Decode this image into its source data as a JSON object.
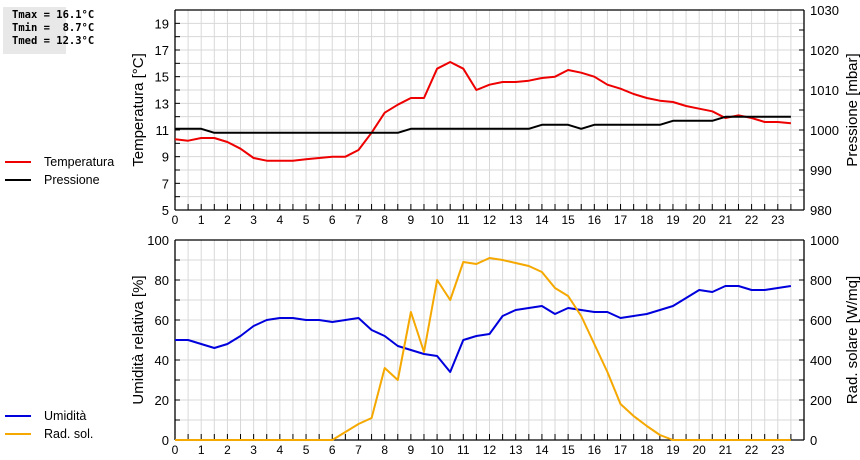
{
  "stats": {
    "tmax": "Tmax = 16.1°C",
    "tmin": "Tmin =  8.7°C",
    "tmed": "Tmed = 12.3°C"
  },
  "legend_top": [
    {
      "label": "Temperatura",
      "color": "#ee0000"
    },
    {
      "label": "Pressione",
      "color": "#000000"
    }
  ],
  "legend_bottom": [
    {
      "label": "Umidità",
      "color": "#0000dd"
    },
    {
      "label": "Rad. sol.",
      "color": "#f5a800"
    }
  ],
  "chart_data": [
    {
      "type": "line",
      "title": "",
      "xlabel": "",
      "x_ticks": [
        "0",
        "1",
        "2",
        "3",
        "4",
        "5",
        "6",
        "7",
        "8",
        "9",
        "10",
        "11",
        "12",
        "13",
        "14",
        "15",
        "16",
        "17",
        "18",
        "19",
        "20",
        "21",
        "22",
        "23"
      ],
      "xlim": [
        0,
        24
      ],
      "grid": true,
      "y_left": {
        "label": "Temperatura [°C]",
        "range": [
          5,
          20
        ],
        "ticks": [
          5,
          7,
          9,
          11,
          13,
          15,
          17,
          19
        ]
      },
      "y_right": {
        "label": "Pressione [mbar]",
        "range": [
          980,
          1030
        ],
        "ticks": [
          980,
          990,
          1000,
          1010,
          1020,
          1030
        ]
      },
      "x": [
        0,
        0.5,
        1,
        1.5,
        2,
        2.5,
        3,
        3.5,
        4,
        4.5,
        5,
        5.5,
        6,
        6.5,
        7,
        7.5,
        8,
        8.5,
        9,
        9.5,
        10,
        10.5,
        11,
        11.5,
        12,
        12.5,
        13,
        13.5,
        14,
        14.5,
        15,
        15.5,
        16,
        16.5,
        17,
        17.5,
        18,
        18.5,
        19,
        19.5,
        20,
        20.5,
        21,
        21.5,
        22,
        22.5,
        23,
        23.5
      ],
      "series": [
        {
          "name": "Temperatura",
          "axis": "left",
          "color": "#ee0000",
          "values": [
            10.3,
            10.2,
            10.4,
            10.4,
            10.1,
            9.6,
            8.9,
            8.7,
            8.7,
            8.7,
            8.8,
            8.9,
            9.0,
            9.0,
            9.5,
            10.8,
            12.3,
            12.9,
            13.4,
            13.4,
            15.6,
            16.1,
            15.6,
            14.0,
            14.4,
            14.6,
            14.6,
            14.7,
            14.9,
            15.0,
            15.5,
            15.3,
            15.0,
            14.4,
            14.1,
            13.7,
            13.4,
            13.2,
            13.1,
            12.8,
            12.6,
            12.4,
            11.9,
            12.1,
            11.9,
            11.6,
            11.6,
            11.5
          ]
        },
        {
          "name": "Pressione",
          "axis": "right",
          "color": "#000000",
          "values": [
            1000.3,
            1000.3,
            1000.3,
            999.3,
            999.3,
            999.3,
            999.3,
            999.3,
            999.3,
            999.3,
            999.3,
            999.3,
            999.3,
            999.3,
            999.3,
            999.3,
            999.3,
            999.3,
            1000.3,
            1000.3,
            1000.3,
            1000.3,
            1000.3,
            1000.3,
            1000.3,
            1000.3,
            1000.3,
            1000.3,
            1001.3,
            1001.3,
            1001.3,
            1000.3,
            1001.3,
            1001.3,
            1001.3,
            1001.3,
            1001.3,
            1001.3,
            1002.3,
            1002.3,
            1002.3,
            1002.3,
            1003.3,
            1003.3,
            1003.3,
            1003.3,
            1003.3,
            1003.3
          ]
        }
      ]
    },
    {
      "type": "line",
      "title": "",
      "xlabel": "",
      "x_ticks": [
        "0",
        "1",
        "2",
        "3",
        "4",
        "5",
        "6",
        "7",
        "8",
        "9",
        "10",
        "11",
        "12",
        "13",
        "14",
        "15",
        "16",
        "17",
        "18",
        "19",
        "20",
        "21",
        "22",
        "23"
      ],
      "xlim": [
        0,
        24
      ],
      "grid": true,
      "y_left": {
        "label": "Umidità relativa [%]",
        "range": [
          0,
          100
        ],
        "ticks": [
          0,
          20,
          40,
          60,
          80,
          100
        ]
      },
      "y_right": {
        "label": "Rad. solare [W/mq]",
        "range": [
          0,
          1000
        ],
        "ticks": [
          0,
          200,
          400,
          600,
          800,
          1000
        ]
      },
      "x": [
        0,
        0.5,
        1,
        1.5,
        2,
        2.5,
        3,
        3.5,
        4,
        4.5,
        5,
        5.5,
        6,
        6.5,
        7,
        7.5,
        8,
        8.5,
        9,
        9.5,
        10,
        10.5,
        11,
        11.5,
        12,
        12.5,
        13,
        13.5,
        14,
        14.5,
        15,
        15.5,
        16,
        16.5,
        17,
        17.5,
        18,
        18.5,
        19,
        19.5,
        20,
        20.5,
        21,
        21.5,
        22,
        22.5,
        23,
        23.5
      ],
      "series": [
        {
          "name": "Umidità",
          "axis": "left",
          "color": "#0000dd",
          "values": [
            50,
            50,
            48,
            46,
            48,
            52,
            57,
            60,
            61,
            61,
            60,
            60,
            59,
            60,
            61,
            55,
            52,
            47,
            45,
            43,
            42,
            34,
            50,
            52,
            53,
            62,
            65,
            66,
            67,
            63,
            66,
            65,
            64,
            64,
            61,
            62,
            63,
            65,
            67,
            71,
            75,
            74,
            77,
            77,
            75,
            75,
            76,
            77
          ]
        },
        {
          "name": "Rad. sol.",
          "axis": "right",
          "color": "#f5a800",
          "values": [
            0,
            0,
            0,
            0,
            0,
            0,
            0,
            0,
            0,
            0,
            0,
            0,
            0,
            40,
            80,
            110,
            360,
            300,
            640,
            440,
            800,
            700,
            890,
            880,
            910,
            900,
            885,
            870,
            840,
            760,
            720,
            620,
            480,
            340,
            180,
            120,
            70,
            25,
            0,
            0,
            0,
            0,
            0,
            0,
            0,
            0,
            0,
            0
          ]
        }
      ]
    }
  ]
}
